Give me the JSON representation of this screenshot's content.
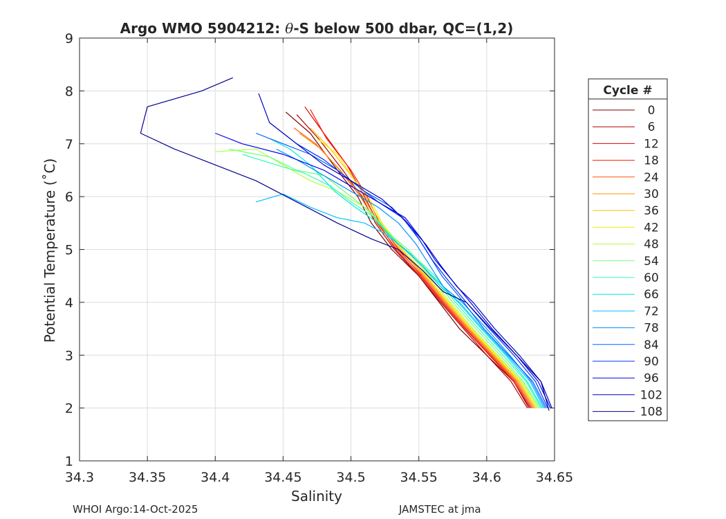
{
  "chart_data": {
    "type": "line",
    "title_prefix": "Argo WMO 5904212: ",
    "title_theta": "θ",
    "title_suffix": "-S below 500 dbar,  QC=(1,2)",
    "xlabel": "Salinity",
    "ylabel": "Potential Temperature (˚C)",
    "xlim": [
      34.3,
      34.65
    ],
    "ylim": [
      1,
      9
    ],
    "xticks": [
      34.3,
      34.35,
      34.4,
      34.45,
      34.5,
      34.55,
      34.6,
      34.65
    ],
    "xtick_labels": [
      "34.3",
      "34.35",
      "34.4",
      "34.45",
      "34.5",
      "34.55",
      "34.6",
      "34.65"
    ],
    "yticks": [
      1,
      2,
      3,
      4,
      5,
      6,
      7,
      8,
      9
    ],
    "ytick_labels": [
      "1",
      "2",
      "3",
      "4",
      "5",
      "6",
      "7",
      "8",
      "9"
    ],
    "grid": true,
    "legend_position": "right",
    "legend_title": "Cycle #",
    "legend": [
      {
        "label": "0",
        "color": "#7f0000"
      },
      {
        "label": "6",
        "color": "#b00000"
      },
      {
        "label": "12",
        "color": "#dd0000"
      },
      {
        "label": "18",
        "color": "#ff1a00"
      },
      {
        "label": "24",
        "color": "#ff5500"
      },
      {
        "label": "30",
        "color": "#ff9000"
      },
      {
        "label": "36",
        "color": "#ffc000"
      },
      {
        "label": "42",
        "color": "#f0f000"
      },
      {
        "label": "48",
        "color": "#b0ff40"
      },
      {
        "label": "54",
        "color": "#70ff80"
      },
      {
        "label": "60",
        "color": "#30ffb0"
      },
      {
        "label": "66",
        "color": "#00e8e0"
      },
      {
        "label": "72",
        "color": "#00c0ff"
      },
      {
        "label": "78",
        "color": "#0090ff"
      },
      {
        "label": "84",
        "color": "#0060ff"
      },
      {
        "label": "90",
        "color": "#0030ff"
      },
      {
        "label": "96",
        "color": "#0000f0"
      },
      {
        "label": "102",
        "color": "#0000c0"
      },
      {
        "label": "108",
        "color": "#00008f"
      }
    ],
    "series": [
      {
        "name": "cycle-0",
        "color": "#7f0000",
        "points": [
          [
            34.452,
            7.6
          ],
          [
            34.47,
            7.2
          ],
          [
            34.49,
            6.5
          ],
          [
            34.505,
            6.0
          ],
          [
            34.515,
            5.5
          ],
          [
            34.53,
            5.0
          ],
          [
            34.55,
            4.5
          ],
          [
            34.565,
            4.0
          ],
          [
            34.58,
            3.5
          ],
          [
            34.6,
            3.0
          ],
          [
            34.62,
            2.5
          ],
          [
            34.632,
            2.0
          ]
        ]
      },
      {
        "name": "cycle-6",
        "color": "#b00000",
        "points": [
          [
            34.46,
            7.55
          ],
          [
            34.476,
            7.1
          ],
          [
            34.494,
            6.5
          ],
          [
            34.508,
            6.0
          ],
          [
            34.518,
            5.5
          ],
          [
            34.532,
            5.0
          ],
          [
            34.55,
            4.5
          ],
          [
            34.566,
            4.0
          ],
          [
            34.583,
            3.5
          ],
          [
            34.6,
            3.0
          ],
          [
            34.618,
            2.5
          ],
          [
            34.63,
            2.0
          ]
        ]
      },
      {
        "name": "cycle-12",
        "color": "#dd0000",
        "points": [
          [
            34.466,
            7.7
          ],
          [
            34.48,
            7.2
          ],
          [
            34.497,
            6.6
          ],
          [
            34.51,
            6.0
          ],
          [
            34.52,
            5.5
          ],
          [
            34.533,
            5.0
          ],
          [
            34.551,
            4.5
          ],
          [
            34.567,
            4.0
          ],
          [
            34.584,
            3.5
          ],
          [
            34.602,
            3.0
          ],
          [
            34.62,
            2.5
          ],
          [
            34.631,
            2.0
          ]
        ]
      },
      {
        "name": "cycle-18",
        "color": "#ff1a00",
        "points": [
          [
            34.47,
            7.65
          ],
          [
            34.482,
            7.1
          ],
          [
            34.5,
            6.5
          ],
          [
            34.512,
            6.0
          ],
          [
            34.521,
            5.5
          ],
          [
            34.535,
            5.0
          ],
          [
            34.552,
            4.5
          ],
          [
            34.568,
            4.0
          ],
          [
            34.585,
            3.5
          ],
          [
            34.603,
            3.0
          ],
          [
            34.621,
            2.5
          ],
          [
            34.633,
            2.0
          ]
        ]
      },
      {
        "name": "cycle-24",
        "color": "#ff5500",
        "points": [
          [
            34.458,
            7.3
          ],
          [
            34.474,
            7.0
          ],
          [
            34.492,
            6.5
          ],
          [
            34.507,
            6.0
          ],
          [
            34.519,
            5.5
          ],
          [
            34.534,
            5.0
          ],
          [
            34.553,
            4.5
          ],
          [
            34.569,
            4.0
          ],
          [
            34.586,
            3.5
          ],
          [
            34.604,
            3.0
          ],
          [
            34.622,
            2.5
          ],
          [
            34.634,
            2.0
          ]
        ]
      },
      {
        "name": "cycle-30",
        "color": "#ff9000",
        "points": [
          [
            34.462,
            7.2
          ],
          [
            34.478,
            6.9
          ],
          [
            34.495,
            6.4
          ],
          [
            34.509,
            6.0
          ],
          [
            34.52,
            5.5
          ],
          [
            34.536,
            5.0
          ],
          [
            34.554,
            4.5
          ],
          [
            34.57,
            4.0
          ],
          [
            34.587,
            3.5
          ],
          [
            34.605,
            3.0
          ],
          [
            34.623,
            2.5
          ],
          [
            34.635,
            2.0
          ]
        ]
      },
      {
        "name": "cycle-36",
        "color": "#ffc000",
        "points": [
          [
            34.47,
            7.3
          ],
          [
            34.485,
            6.9
          ],
          [
            34.5,
            6.4
          ],
          [
            34.511,
            6.0
          ],
          [
            34.522,
            5.5
          ],
          [
            34.537,
            5.0
          ],
          [
            34.555,
            4.5
          ],
          [
            34.571,
            4.0
          ],
          [
            34.588,
            3.5
          ],
          [
            34.606,
            3.0
          ],
          [
            34.624,
            2.5
          ],
          [
            34.636,
            2.0
          ]
        ]
      },
      {
        "name": "cycle-42",
        "color": "#f0f000",
        "points": [
          [
            34.475,
            7.1
          ],
          [
            34.49,
            6.8
          ],
          [
            34.503,
            6.3
          ],
          [
            34.513,
            6.0
          ],
          [
            34.523,
            5.5
          ],
          [
            34.538,
            5.0
          ],
          [
            34.556,
            4.5
          ],
          [
            34.572,
            4.0
          ],
          [
            34.589,
            3.5
          ],
          [
            34.607,
            3.0
          ],
          [
            34.625,
            2.5
          ],
          [
            34.637,
            2.0
          ]
        ]
      },
      {
        "name": "cycle-48",
        "color": "#b0ff40",
        "points": [
          [
            34.4,
            6.85
          ],
          [
            34.43,
            6.9
          ],
          [
            34.45,
            6.6
          ],
          [
            34.47,
            6.3
          ],
          [
            34.49,
            6.1
          ],
          [
            34.51,
            5.8
          ],
          [
            34.525,
            5.4
          ],
          [
            34.54,
            5.0
          ],
          [
            34.558,
            4.5
          ],
          [
            34.573,
            4.0
          ],
          [
            34.59,
            3.5
          ],
          [
            34.608,
            3.0
          ],
          [
            34.626,
            2.5
          ],
          [
            34.638,
            2.0
          ]
        ]
      },
      {
        "name": "cycle-54",
        "color": "#70ff80",
        "points": [
          [
            34.41,
            6.9
          ],
          [
            34.44,
            6.75
          ],
          [
            34.46,
            6.5
          ],
          [
            34.48,
            6.4
          ],
          [
            34.5,
            6.0
          ],
          [
            34.515,
            5.7
          ],
          [
            34.528,
            5.3
          ],
          [
            34.542,
            5.0
          ],
          [
            34.56,
            4.5
          ],
          [
            34.575,
            4.0
          ],
          [
            34.592,
            3.5
          ],
          [
            34.61,
            3.0
          ],
          [
            34.627,
            2.5
          ],
          [
            34.639,
            2.0
          ]
        ]
      },
      {
        "name": "cycle-60",
        "color": "#30ffb0",
        "points": [
          [
            34.42,
            6.8
          ],
          [
            34.445,
            6.6
          ],
          [
            34.465,
            6.45
          ],
          [
            34.485,
            6.2
          ],
          [
            34.5,
            5.9
          ],
          [
            34.518,
            5.6
          ],
          [
            34.53,
            5.2
          ],
          [
            34.545,
            4.9
          ],
          [
            34.562,
            4.5
          ],
          [
            34.577,
            4.0
          ],
          [
            34.594,
            3.5
          ],
          [
            34.612,
            3.0
          ],
          [
            34.629,
            2.5
          ],
          [
            34.64,
            2.0
          ]
        ]
      },
      {
        "name": "cycle-66",
        "color": "#00e8e0",
        "points": [
          [
            34.44,
            7.1
          ],
          [
            34.455,
            6.9
          ],
          [
            34.47,
            6.6
          ],
          [
            34.488,
            6.1
          ],
          [
            34.503,
            5.8
          ],
          [
            34.52,
            5.5
          ],
          [
            34.535,
            5.1
          ],
          [
            34.548,
            4.8
          ],
          [
            34.564,
            4.4
          ],
          [
            34.579,
            4.0
          ],
          [
            34.596,
            3.5
          ],
          [
            34.614,
            3.0
          ],
          [
            34.63,
            2.5
          ],
          [
            34.641,
            2.0
          ]
        ]
      },
      {
        "name": "cycle-72",
        "color": "#00c0ff",
        "points": [
          [
            34.43,
            5.9
          ],
          [
            34.45,
            6.05
          ],
          [
            34.47,
            5.8
          ],
          [
            34.49,
            5.6
          ],
          [
            34.51,
            5.5
          ],
          [
            34.525,
            5.3
          ],
          [
            34.54,
            5.0
          ],
          [
            34.552,
            4.7
          ],
          [
            34.566,
            4.3
          ],
          [
            34.58,
            4.0
          ],
          [
            34.597,
            3.5
          ],
          [
            34.615,
            3.0
          ],
          [
            34.632,
            2.5
          ],
          [
            34.642,
            2.0
          ]
        ]
      },
      {
        "name": "cycle-78",
        "color": "#0090ff",
        "points": [
          [
            34.445,
            6.9
          ],
          [
            34.46,
            6.7
          ],
          [
            34.48,
            6.4
          ],
          [
            34.5,
            6.1
          ],
          [
            34.52,
            5.8
          ],
          [
            34.535,
            5.5
          ],
          [
            34.548,
            5.1
          ],
          [
            34.558,
            4.7
          ],
          [
            34.568,
            4.3
          ],
          [
            34.582,
            4.0
          ],
          [
            34.6,
            3.5
          ],
          [
            34.617,
            3.0
          ],
          [
            34.633,
            2.5
          ],
          [
            34.643,
            2.0
          ]
        ]
      },
      {
        "name": "cycle-84",
        "color": "#0060ff",
        "points": [
          [
            34.43,
            7.2
          ],
          [
            34.45,
            7.0
          ],
          [
            34.47,
            6.8
          ],
          [
            34.49,
            6.5
          ],
          [
            34.51,
            6.1
          ],
          [
            34.53,
            5.8
          ],
          [
            34.545,
            5.4
          ],
          [
            34.555,
            5.0
          ],
          [
            34.567,
            4.5
          ],
          [
            34.58,
            4.1
          ],
          [
            34.598,
            3.5
          ],
          [
            34.616,
            3.0
          ],
          [
            34.634,
            2.5
          ],
          [
            34.644,
            2.0
          ]
        ]
      },
      {
        "name": "cycle-90",
        "color": "#0030ff",
        "points": [
          [
            34.44,
            7.4
          ],
          [
            34.46,
            7.0
          ],
          [
            34.48,
            6.7
          ],
          [
            34.5,
            6.3
          ],
          [
            34.52,
            5.9
          ],
          [
            34.538,
            5.6
          ],
          [
            34.55,
            5.2
          ],
          [
            34.56,
            4.8
          ],
          [
            34.572,
            4.4
          ],
          [
            34.585,
            4.0
          ],
          [
            34.602,
            3.5
          ],
          [
            34.62,
            3.0
          ],
          [
            34.636,
            2.5
          ],
          [
            34.645,
            2.0
          ]
        ]
      },
      {
        "name": "cycle-96",
        "color": "#0000f0",
        "points": [
          [
            34.4,
            7.2
          ],
          [
            34.42,
            7.0
          ],
          [
            34.45,
            6.8
          ],
          [
            34.48,
            6.5
          ],
          [
            34.5,
            6.2
          ],
          [
            34.52,
            5.9
          ],
          [
            34.54,
            5.6
          ],
          [
            34.552,
            5.2
          ],
          [
            34.562,
            4.8
          ],
          [
            34.575,
            4.4
          ],
          [
            34.588,
            4.0
          ],
          [
            34.604,
            3.5
          ],
          [
            34.622,
            3.0
          ],
          [
            34.638,
            2.5
          ],
          [
            34.647,
            2.0
          ]
        ]
      },
      {
        "name": "cycle-102",
        "color": "#0000c0",
        "points": [
          [
            34.432,
            7.95
          ],
          [
            34.44,
            7.4
          ],
          [
            34.46,
            7.0
          ],
          [
            34.48,
            6.6
          ],
          [
            34.5,
            6.3
          ],
          [
            34.523,
            5.95
          ],
          [
            34.54,
            5.55
          ],
          [
            34.555,
            5.1
          ],
          [
            34.566,
            4.7
          ],
          [
            34.578,
            4.3
          ],
          [
            34.59,
            4.0
          ],
          [
            34.606,
            3.5
          ],
          [
            34.624,
            3.0
          ],
          [
            34.64,
            2.5
          ],
          [
            34.648,
            2.0
          ]
        ]
      },
      {
        "name": "cycle-108",
        "color": "#00008f",
        "points": [
          [
            34.413,
            8.25
          ],
          [
            34.39,
            8.0
          ],
          [
            34.35,
            7.7
          ],
          [
            34.345,
            7.2
          ],
          [
            34.37,
            6.9
          ],
          [
            34.4,
            6.6
          ],
          [
            34.43,
            6.3
          ],
          [
            34.46,
            5.9
          ],
          [
            34.49,
            5.5
          ],
          [
            34.515,
            5.2
          ],
          [
            34.535,
            5.0
          ],
          [
            34.553,
            4.6
          ],
          [
            34.568,
            4.2
          ],
          [
            34.585,
            4.0
          ],
          [
            34.603,
            3.5
          ],
          [
            34.622,
            3.0
          ],
          [
            34.64,
            2.5
          ],
          [
            34.646,
            1.95
          ]
        ]
      }
    ]
  },
  "footer": {
    "left": "WHOI Argo:14-Oct-2025",
    "right": "JAMSTEC at jma"
  }
}
